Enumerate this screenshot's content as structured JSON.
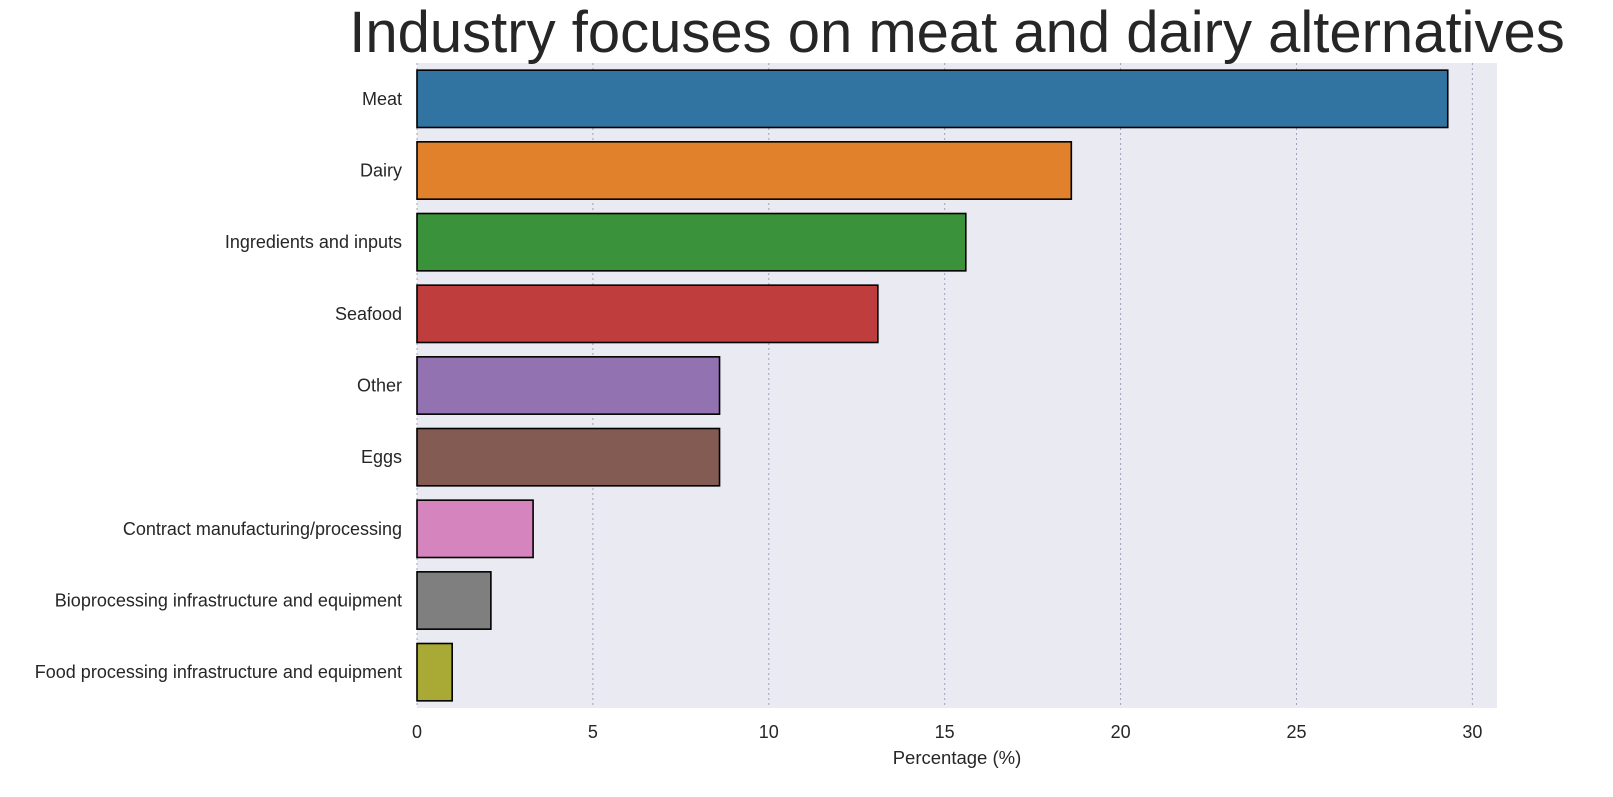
{
  "chart_data": {
    "type": "bar",
    "orientation": "horizontal",
    "title": "Industry focuses on meat and dairy alternatives",
    "xlabel": "Percentage (%)",
    "ylabel": "",
    "xlim": [
      0,
      30.7
    ],
    "xticks": [
      0,
      5,
      10,
      15,
      20,
      25,
      30
    ],
    "grid": "vertical-dotted",
    "categories": [
      "Meat",
      "Dairy",
      "Ingredients and inputs",
      "Seafood",
      "Other",
      "Eggs",
      "Contract manufacturing/processing",
      "Bioprocessing infrastructure and equipment",
      "Food processing infrastructure and equipment"
    ],
    "values": [
      29.3,
      18.6,
      15.6,
      13.1,
      8.6,
      8.6,
      3.3,
      2.1,
      1.0
    ],
    "colors": [
      "#3274a1",
      "#e1812c",
      "#3a923a",
      "#c03d3e",
      "#9372b2",
      "#845b53",
      "#d684bd",
      "#7f7f7f",
      "#a9aa35"
    ]
  }
}
